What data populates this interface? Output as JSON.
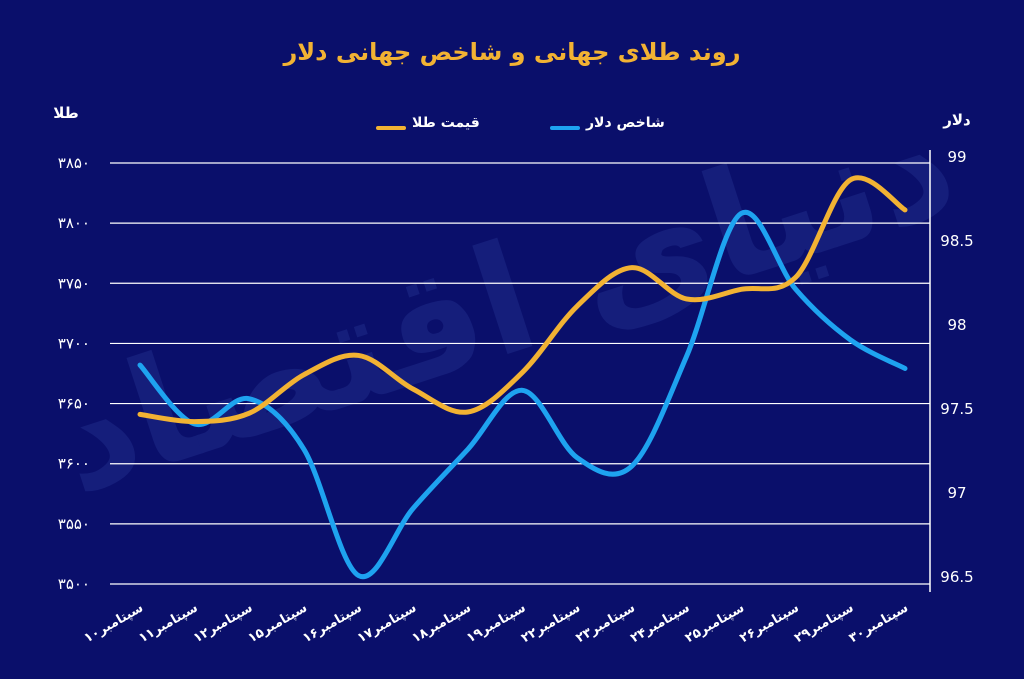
{
  "chart_data": {
    "type": "line",
    "title": "روند طلای جهانی و شاخص جهانی دلار",
    "watermark": "دنیای اقتصاد",
    "y_left": {
      "label": "طلا",
      "ticks": [
        "۳۸۵۰",
        "۳۸۰۰",
        "۳۷۵۰",
        "۳۷۰۰",
        "۳۶۵۰",
        "۳۶۰۰",
        "۳۵۵۰",
        "۳۵۰۰"
      ],
      "range": [
        3500,
        3850
      ]
    },
    "y_right": {
      "label": "دلار",
      "ticks": [
        "99",
        "98.5",
        "98",
        "97.5",
        "97",
        "96.5"
      ],
      "range": [
        96.5,
        99
      ]
    },
    "categories": [
      "۱۰سپتامبر",
      "۱۱سپتامبر",
      "۱۲سپتامبر",
      "۱۵سپتامبر",
      "۱۶سپتامبر",
      "۱۷سپتامبر",
      "۱۸سپتامبر",
      "۱۹سپتامبر",
      "۲۲سپتامبر",
      "۲۳سپتامبر",
      "۲۴سپتامبر",
      "۲۵سپتامبر",
      "۲۶سپتامبر",
      "۲۹سپتامبر",
      "۳۰سپتامبر"
    ],
    "series": [
      {
        "name": "قیمت طلا",
        "axis": "left",
        "color": "#f2b233",
        "values": [
          3641,
          3635,
          3642,
          3674,
          3690,
          3662,
          3643,
          3676,
          3731,
          3763,
          3737,
          3745,
          3755,
          3836,
          3811
        ]
      },
      {
        "name": "شاخص دلار",
        "axis": "right",
        "color": "#1ea3f0",
        "values": [
          97.8,
          97.45,
          97.6,
          97.3,
          96.55,
          96.95,
          97.3,
          97.65,
          97.25,
          97.2,
          97.85,
          98.7,
          98.25,
          97.95,
          97.78
        ]
      }
    ],
    "grid": true,
    "legend_position": "top-center"
  }
}
